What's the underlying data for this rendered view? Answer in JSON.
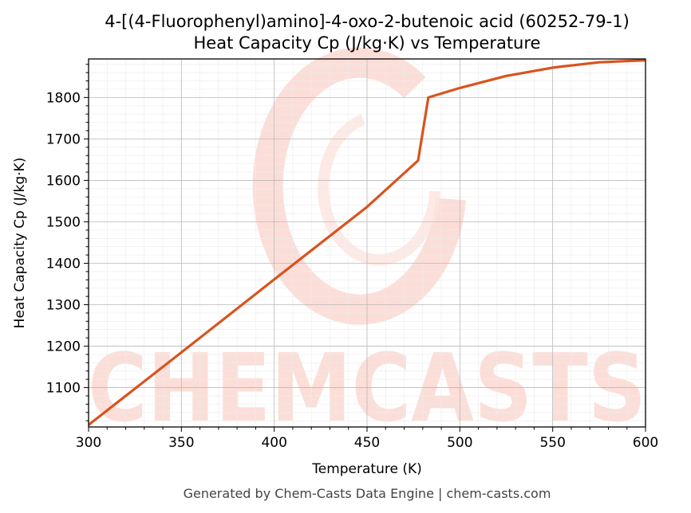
{
  "chart_data": {
    "type": "line",
    "title": "4-[(4-Fluorophenyl)amino]-4-oxo-2-butenoic acid (60252-79-1)",
    "subtitle": "Heat Capacity Cp (J/kg·K) vs Temperature",
    "xlabel": "Temperature (K)",
    "ylabel": "Heat Capacity Cp (J/kg·K)",
    "xlim": [
      300,
      600
    ],
    "ylim": [
      1005,
      1893
    ],
    "x_ticks": [
      300,
      350,
      400,
      450,
      500,
      550,
      600
    ],
    "y_ticks": [
      1100,
      1200,
      1300,
      1400,
      1500,
      1600,
      1700,
      1800
    ],
    "grid": true,
    "line_color": "#d9531e",
    "series": [
      {
        "x": [
          300,
          350,
          400,
          450,
          477.5,
          483,
          500,
          525,
          550,
          575,
          600
        ],
        "values": [
          1010,
          1185,
          1361,
          1536,
          1648,
          1800,
          1823,
          1852,
          1872,
          1885,
          1890
        ]
      }
    ]
  },
  "watermark": {
    "text": "CHEMCASTS",
    "color": "#fbd3cc"
  },
  "footer": "Generated by Chem-Casts Data Engine | chem-casts.com"
}
